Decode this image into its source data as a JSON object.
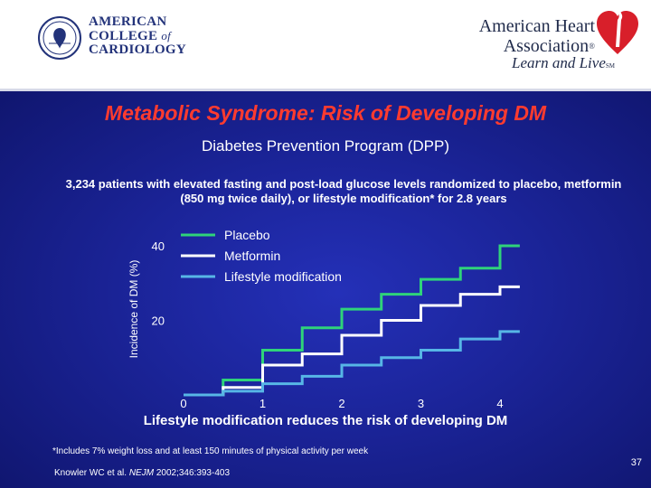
{
  "header": {
    "acc_line1": "AMERICAN",
    "acc_line2": "COLLEGE",
    "acc_of": "of",
    "acc_line3": "CARDIOLOGY",
    "aha_line1": "American Heart",
    "aha_line2": "Association",
    "aha_reg": "®",
    "aha_tagline": "Learn and Live",
    "aha_tm": "SM"
  },
  "slide": {
    "title": "Metabolic Syndrome: Risk of Developing DM",
    "subtitle": "Diabetes Prevention Program (DPP)",
    "description": "3,234 patients with elevated fasting and post-load glucose levels randomized to placebo, metformin (850 mg twice daily), or lifestyle modification* for 2.8 years",
    "conclusion": "Lifestyle modification reduces the risk of developing DM",
    "footnote": "*Includes 7% weight loss and at least 150 minutes of physical activity per week",
    "citation_authors": "Knowler WC et al. ",
    "citation_journal": "NEJM",
    "citation_rest": " 2002;346:393-403",
    "page_number": "37"
  },
  "colors": {
    "placebo": "#2fd37a",
    "metformin": "#ffffff",
    "lifestyle": "#57b6e6",
    "title": "#ff3b2f"
  },
  "chart_data": {
    "type": "line",
    "step": true,
    "title": "",
    "xlabel": "",
    "ylabel": "Incidence of DM (%)",
    "xlim": [
      0,
      4.2
    ],
    "ylim": [
      0,
      45
    ],
    "x_ticks": [
      0,
      1,
      2,
      3,
      4
    ],
    "y_ticks": [
      20,
      40
    ],
    "legend_position": "top-left",
    "series": [
      {
        "name": "Placebo",
        "color": "#2fd37a",
        "x": [
          0,
          0.5,
          1.0,
          1.5,
          2.0,
          2.5,
          3.0,
          3.5,
          4.0,
          4.25
        ],
        "y": [
          0,
          4,
          12,
          18,
          23,
          27,
          31,
          34,
          40,
          40
        ]
      },
      {
        "name": "Metformin",
        "color": "#ffffff",
        "x": [
          0,
          0.5,
          1.0,
          1.5,
          2.0,
          2.5,
          3.0,
          3.5,
          4.0,
          4.25
        ],
        "y": [
          0,
          2,
          8,
          11,
          16,
          20,
          24,
          27,
          29,
          29
        ]
      },
      {
        "name": "Lifestyle modification",
        "color": "#57b6e6",
        "x": [
          0,
          0.5,
          1.0,
          1.5,
          2.0,
          2.5,
          3.0,
          3.5,
          4.0,
          4.25
        ],
        "y": [
          0,
          1,
          3,
          5,
          8,
          10,
          12,
          15,
          17,
          17
        ]
      }
    ]
  }
}
